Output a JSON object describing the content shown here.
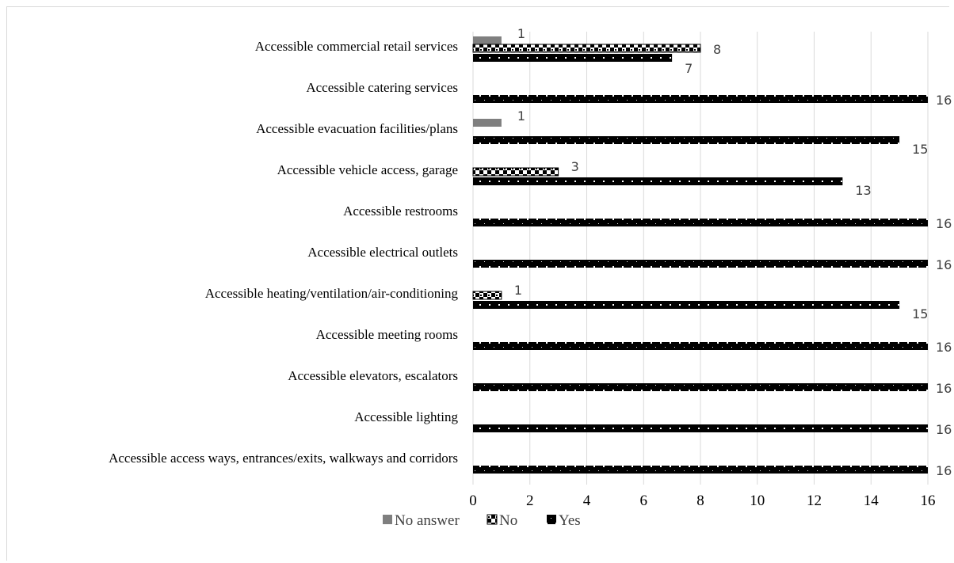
{
  "chart_data": {
    "type": "bar",
    "orientation": "horizontal",
    "categories": [
      "Accessible commercial retail services",
      "Accessible catering services",
      "Accessible evacuation facilities/plans",
      "Accessible vehicle access, garage",
      "Accessible restrooms",
      "Accessible electrical outlets",
      "Accessible heating/ventilation/air-conditioning",
      "Accessible meeting rooms",
      "Accessible elevators, escalators",
      "Accessible lighting",
      "Accessible access ways, entrances/exits, walkways and corridors"
    ],
    "series": [
      {
        "name": "No answer",
        "color": "#7f7f7f",
        "pattern": "solid-gray",
        "values": [
          1,
          0,
          1,
          0,
          0,
          0,
          0,
          0,
          0,
          0,
          0
        ]
      },
      {
        "name": "No",
        "color": "#000000",
        "pattern": "checker",
        "values": [
          8,
          0,
          0,
          3,
          0,
          0,
          1,
          0,
          0,
          0,
          0
        ]
      },
      {
        "name": "Yes",
        "color": "#000000",
        "pattern": "dotted-black",
        "values": [
          7,
          16,
          15,
          13,
          16,
          16,
          15,
          16,
          16,
          16,
          16
        ]
      }
    ],
    "xlim": [
      0,
      16
    ],
    "x_ticks": [
      "0",
      "2",
      "4",
      "6",
      "8",
      "10",
      "12",
      "14",
      "16"
    ],
    "grid": true,
    "legend_position": "bottom",
    "title": "",
    "xlabel": "",
    "ylabel": ""
  }
}
